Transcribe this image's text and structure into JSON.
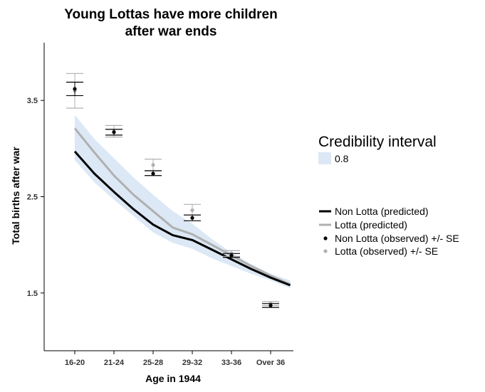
{
  "chart_data": {
    "type": "line",
    "title_lines": [
      "Young Lottas have more children",
      "after war ends"
    ],
    "xlabel": "Age in 1944",
    "ylabel": "Total births after war",
    "categories": [
      "16-20",
      "21-24",
      "25-28",
      "29-32",
      "33-36",
      "Over 36"
    ],
    "y_ticks": [
      1.5,
      2.5,
      3.5
    ],
    "ylim": [
      0.9,
      4.1
    ],
    "grid": false,
    "band": {
      "name": "0.8",
      "x": [
        0.0,
        0.5,
        1.0,
        1.5,
        2.0,
        2.5,
        3.0,
        3.5,
        4.0,
        4.5,
        5.0,
        5.5
      ],
      "upper": [
        3.35,
        3.1,
        2.9,
        2.7,
        2.52,
        2.35,
        2.22,
        2.06,
        1.92,
        1.8,
        1.7,
        1.63
      ],
      "lower": [
        2.88,
        2.65,
        2.47,
        2.3,
        2.13,
        2.02,
        1.96,
        1.86,
        1.78,
        1.7,
        1.63,
        1.55
      ]
    },
    "series": [
      {
        "name": "Non Lotta (predicted)",
        "x": [
          0.0,
          0.5,
          1.0,
          1.5,
          2.0,
          2.5,
          3.0,
          3.5,
          4.0,
          4.5,
          5.0,
          5.5
        ],
        "values": [
          2.97,
          2.74,
          2.55,
          2.37,
          2.21,
          2.1,
          2.05,
          1.95,
          1.85,
          1.75,
          1.66,
          1.58
        ]
      },
      {
        "name": "Lotta (predicted)",
        "x": [
          0.0,
          0.5,
          1.0,
          1.5,
          2.0,
          2.5,
          3.0,
          3.5,
          4.0,
          4.5,
          5.0,
          5.5
        ],
        "values": [
          3.21,
          2.96,
          2.72,
          2.52,
          2.35,
          2.18,
          2.11,
          2.0,
          1.89,
          1.78,
          1.68,
          1.59
        ]
      }
    ],
    "observed": [
      {
        "name": "Non Lotta (observed) +/- SE",
        "color": "#000000",
        "points": [
          {
            "x": 0,
            "y": 3.62,
            "lo": 3.55,
            "hi": 3.69
          },
          {
            "x": 1,
            "y": 3.17,
            "lo": 3.14,
            "hi": 3.2
          },
          {
            "x": 2,
            "y": 2.74,
            "lo": 2.72,
            "hi": 2.77
          },
          {
            "x": 3,
            "y": 2.28,
            "lo": 2.25,
            "hi": 2.31
          },
          {
            "x": 4,
            "y": 1.89,
            "lo": 1.87,
            "hi": 1.91
          },
          {
            "x": 5,
            "y": 1.37,
            "lo": 1.35,
            "hi": 1.39
          }
        ]
      },
      {
        "name": "Lotta (observed) +/- SE",
        "color": "#b0b0b0",
        "points": [
          {
            "x": 0,
            "y": 3.6,
            "lo": 3.42,
            "hi": 3.78
          },
          {
            "x": 1,
            "y": 3.18,
            "lo": 3.12,
            "hi": 3.24
          },
          {
            "x": 2,
            "y": 2.83,
            "lo": 2.77,
            "hi": 2.89
          },
          {
            "x": 3,
            "y": 2.36,
            "lo": 2.31,
            "hi": 2.42
          },
          {
            "x": 4,
            "y": 1.91,
            "lo": 1.88,
            "hi": 1.94
          },
          {
            "x": 5,
            "y": 1.39,
            "lo": 1.37,
            "hi": 1.41
          }
        ]
      }
    ],
    "legend": {
      "band_title": "Credibility interval",
      "band_label": "0.8",
      "placement": "right",
      "items": [
        {
          "label": "Non Lotta (predicted)",
          "kind": "line",
          "color": "#000000"
        },
        {
          "label": "Lotta (predicted)",
          "kind": "line",
          "color": "#b0b0b0"
        },
        {
          "label": "Non Lotta (observed) +/- SE",
          "kind": "point",
          "color": "#000000"
        },
        {
          "label": "Lotta (observed) +/- SE",
          "kind": "point",
          "color": "#b0b0b0"
        }
      ]
    },
    "colors": {
      "band": "#dce8f5",
      "non_lotta": "#000000",
      "lotta": "#b0b0b0",
      "axis": "#000000"
    }
  }
}
